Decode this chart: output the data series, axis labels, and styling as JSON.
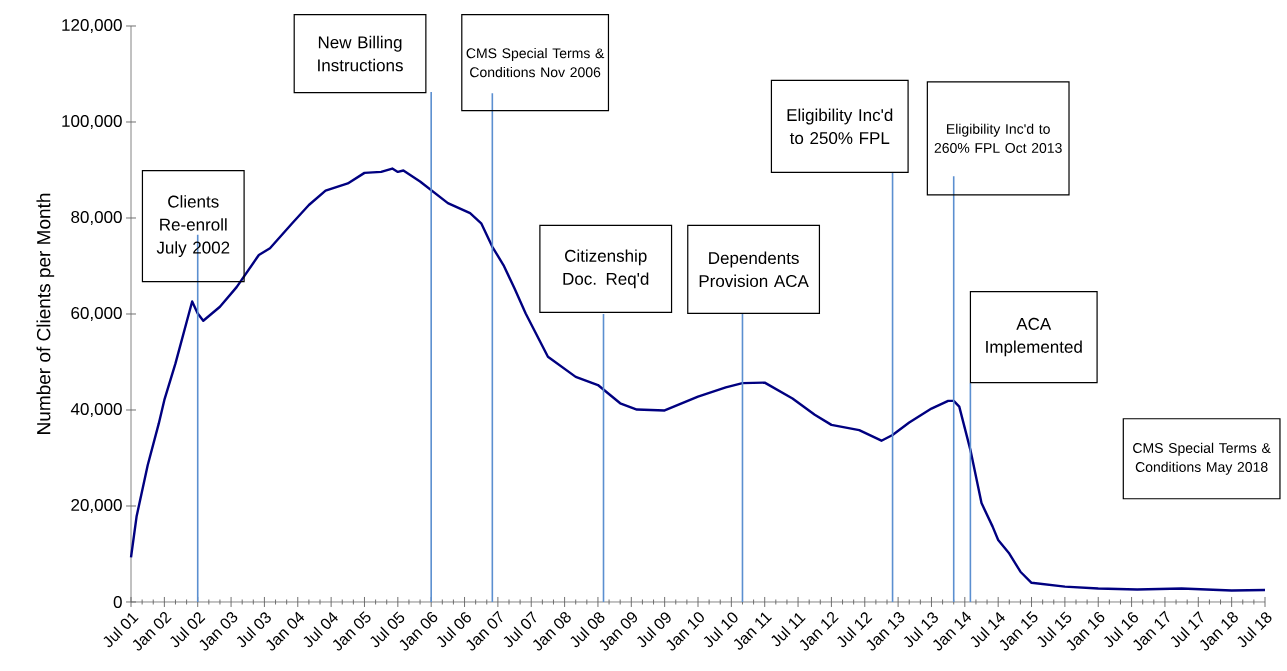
{
  "chart_data": {
    "type": "line",
    "ylabel": "Number of Clients per Month",
    "color": "#000080",
    "x": [
      "2001-07",
      "2001-08",
      "2001-10",
      "2001-12",
      "2002-01",
      "2002-03",
      "2002-06",
      "2002-07",
      "2002-08",
      "2002-11",
      "2003-02",
      "2003-06",
      "2003-08",
      "2003-12",
      "2004-03",
      "2004-06",
      "2004-10",
      "2005-01",
      "2005-04",
      "2005-06",
      "2005-07",
      "2005-08",
      "2005-11",
      "2006-04",
      "2006-08",
      "2006-10",
      "2006-12",
      "2007-02",
      "2007-04",
      "2007-06",
      "2007-10",
      "2008-03",
      "2008-07",
      "2008-11",
      "2009-02",
      "2009-07",
      "2010-01",
      "2010-06",
      "2010-09",
      "2011-01",
      "2011-06",
      "2011-10",
      "2012-01",
      "2012-06",
      "2012-10",
      "2012-12",
      "2013-03",
      "2013-07",
      "2013-10",
      "2013-11",
      "2013-12",
      "2014-02",
      "2014-04",
      "2014-06",
      "2014-07",
      "2014-09",
      "2014-11",
      "2015-01",
      "2015-07",
      "2016-01",
      "2016-08",
      "2017-04",
      "2018-01",
      "2018-07"
    ],
    "values": [
      9300,
      17800,
      28500,
      37200,
      42100,
      49700,
      62600,
      60100,
      58600,
      61500,
      65600,
      72300,
      73700,
      78900,
      82700,
      85700,
      87200,
      89400,
      89600,
      90300,
      89600,
      89900,
      87600,
      83100,
      81000,
      78900,
      74000,
      70200,
      65300,
      60100,
      51100,
      46900,
      45200,
      41400,
      40100,
      39900,
      42800,
      44700,
      45600,
      45700,
      42400,
      39000,
      36900,
      35800,
      33600,
      34800,
      37400,
      40300,
      41900,
      41900,
      40700,
      31700,
      20600,
      15700,
      12900,
      10100,
      6300,
      4000,
      3200,
      2800,
      2600,
      2800,
      2400,
      2500
    ],
    "xlim": [
      "2001-07",
      "2018-07"
    ],
    "xticks": [
      {
        "value": "2001-07",
        "label": "Jul 01"
      },
      {
        "value": "2002-01",
        "label": "Jan 02"
      },
      {
        "value": "2002-07",
        "label": "Jul 02"
      },
      {
        "value": "2003-01",
        "label": "Jan 03"
      },
      {
        "value": "2003-07",
        "label": "Jul 03"
      },
      {
        "value": "2004-01",
        "label": "Jan 04"
      },
      {
        "value": "2004-07",
        "label": "Jul 04"
      },
      {
        "value": "2005-01",
        "label": "Jan 05"
      },
      {
        "value": "2005-07",
        "label": "Jul 05"
      },
      {
        "value": "2006-01",
        "label": "Jan 06"
      },
      {
        "value": "2006-07",
        "label": "Jul 06"
      },
      {
        "value": "2007-01",
        "label": "Jan 07"
      },
      {
        "value": "2007-07",
        "label": "Jul 07"
      },
      {
        "value": "2008-01",
        "label": "Jan 08"
      },
      {
        "value": "2008-07",
        "label": "Jul 08"
      },
      {
        "value": "2009-01",
        "label": "Jan 09"
      },
      {
        "value": "2009-07",
        "label": "Jul 09"
      },
      {
        "value": "2010-01",
        "label": "Jan 10"
      },
      {
        "value": "2010-07",
        "label": "Jul 10"
      },
      {
        "value": "2011-01",
        "label": "Jan 11"
      },
      {
        "value": "2011-07",
        "label": "Jul 11"
      },
      {
        "value": "2012-01",
        "label": "Jan 12"
      },
      {
        "value": "2012-07",
        "label": "Jul 12"
      },
      {
        "value": "2013-01",
        "label": "Jan 13"
      },
      {
        "value": "2013-07",
        "label": "Jul 13"
      },
      {
        "value": "2014-01",
        "label": "Jan 14"
      },
      {
        "value": "2014-07",
        "label": "Jul 14"
      },
      {
        "value": "2015-01",
        "label": "Jan 15"
      },
      {
        "value": "2015-07",
        "label": "Jul 15"
      },
      {
        "value": "2016-01",
        "label": "Jan 16"
      },
      {
        "value": "2016-07",
        "label": "Jul 16"
      },
      {
        "value": "2017-01",
        "label": "Jan 17"
      },
      {
        "value": "2017-07",
        "label": "Jul 17"
      },
      {
        "value": "2018-01",
        "label": "Jan 18"
      },
      {
        "value": "2018-07",
        "label": "Jul 18"
      }
    ],
    "ylim": [
      0,
      120000
    ],
    "yticks": [
      0,
      {
        "value": 20000,
        "label": "20,000"
      },
      {
        "value": 40000,
        "label": "40,000"
      },
      {
        "value": 60000,
        "label": "60,000"
      },
      {
        "value": 80000,
        "label": "80,000"
      },
      {
        "value": 100000,
        "label": "100,000"
      },
      {
        "value": 120000,
        "label": "120,000"
      }
    ],
    "ref_lines": [
      {
        "axis": "x",
        "value": "2002-07",
        "label": "Clients Re-enroll July 2002",
        "color": "#5b8fd0"
      },
      {
        "axis": "x",
        "value": "2006-01",
        "label": "New Billing Instructions",
        "color": "#5b8fd0"
      },
      {
        "axis": "x",
        "value": "2006-12",
        "label": "CMS Special Terms & Conditions Nov 2006",
        "color": "#5b8fd0"
      },
      {
        "axis": "x",
        "value": "2008-08",
        "label": "Citizenship Doc. Req'd",
        "color": "#5b8fd0"
      },
      {
        "axis": "x",
        "value": "2010-09",
        "label": "Dependents Provision ACA",
        "color": "#5b8fd0"
      },
      {
        "axis": "x",
        "value": "2012-12",
        "label": "Eligibility Inc'd to 250% FPL",
        "color": "#5b8fd0"
      },
      {
        "axis": "x",
        "value": "2013-11",
        "label": "Eligibility Inc'd to 260% FPL Oct 2013",
        "color": "#5b8fd0"
      },
      {
        "axis": "x",
        "value": "2014-02",
        "label": "ACA Implemented",
        "color": "#5b8fd0"
      }
    ],
    "annotations": [
      "CMS Special Terms & Conditions May 2018"
    ]
  }
}
